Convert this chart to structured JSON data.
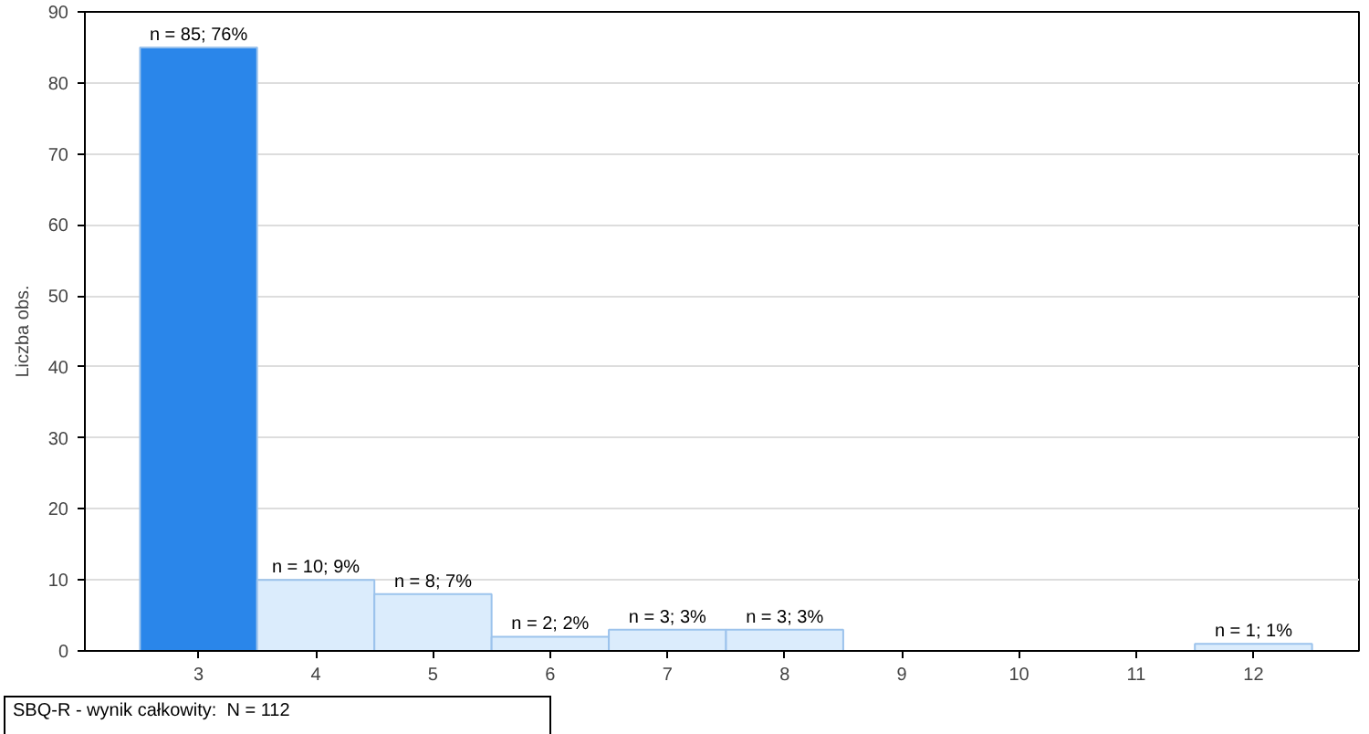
{
  "chart_data": {
    "type": "bar",
    "ylabel": "Liczba obs.",
    "categories": [
      "3",
      "4",
      "5",
      "6",
      "7",
      "8",
      "9",
      "10",
      "11",
      "12"
    ],
    "values": [
      85,
      10,
      8,
      2,
      3,
      3,
      0,
      0,
      0,
      1
    ],
    "colors": [
      "#2a86ea",
      "#dbecfc",
      "#dbecfc",
      "#dbecfc",
      "#dbecfc",
      "#dbecfc",
      "#dbecfc",
      "#dbecfc",
      "#dbecfc",
      "#dbecfc"
    ],
    "value_labels": [
      "n = 85; 76%",
      "n = 10; 9%",
      "n = 8; 7%",
      "n = 2; 2%",
      "n = 3; 3%",
      "n = 3; 3%",
      null,
      null,
      null,
      "n = 1; 1%"
    ],
    "ylim": [
      0,
      90
    ],
    "yticks": [
      0,
      10,
      20,
      30,
      40,
      50,
      60,
      70,
      80,
      90
    ],
    "grid": "y",
    "annotations": [
      "SBQ-R - wynik całkowity:  N = 112"
    ]
  }
}
